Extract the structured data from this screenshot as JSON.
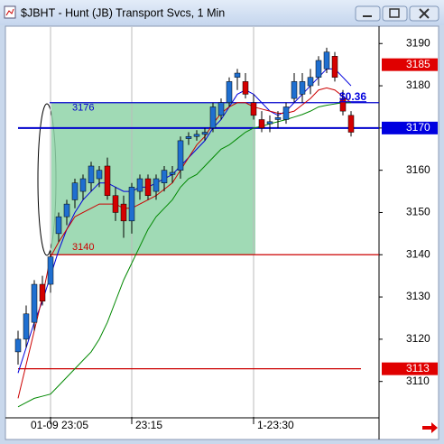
{
  "chart_data": {
    "type": "candlestick",
    "title": "$JBHT - Hunt (JB) Transport Svcs, 1 Min",
    "categories": [
      null,
      null,
      null,
      null,
      "01-09 23:05",
      null,
      null,
      null,
      null,
      null,
      null,
      null,
      null,
      null,
      "23:15",
      null,
      null,
      null,
      null,
      null,
      null,
      null,
      null,
      null,
      null,
      null,
      null,
      null,
      null,
      "1-23:30",
      null,
      null,
      null,
      null,
      null,
      null,
      null,
      null,
      null,
      null,
      null,
      null
    ],
    "open": [
      3117,
      3120,
      3124,
      3133,
      3133,
      3145,
      3149,
      3153,
      3155,
      3157,
      3158,
      3161,
      3154,
      3152,
      3148,
      3155,
      3158,
      3155,
      3157,
      3159,
      3160,
      3167.5,
      3168,
      3168.5,
      3170,
      3173,
      3176,
      3182,
      3181,
      3176,
      3172,
      3171,
      3172,
      3172,
      3177,
      3178,
      3180,
      3182,
      3184,
      3187,
      3177,
      3173
    ],
    "high": [
      3122,
      3128,
      3134,
      3135,
      3141,
      3150,
      3153,
      3158,
      3159,
      3162,
      3161,
      3163,
      3156,
      3154,
      3157,
      3159,
      3159,
      3159,
      3161,
      3161,
      3168,
      3169,
      3169.5,
      3170,
      3176,
      3177,
      3182,
      3184,
      3183,
      3178,
      3174,
      3173,
      3174,
      3176,
      3183,
      3183,
      3184,
      3187,
      3189,
      3188,
      3179,
      3174
    ],
    "low": [
      3114,
      3118,
      3122,
      3128,
      3131,
      3143,
      3147,
      3151,
      3153,
      3155,
      3156,
      3153,
      3148,
      3144,
      3145,
      3153,
      3153,
      3153,
      3155,
      3157,
      3158,
      3166,
      3167,
      3167,
      3169,
      3172,
      3175,
      3179,
      3177,
      3172,
      3169,
      3169,
      3170,
      3171,
      3176,
      3176,
      3178,
      3180,
      3183,
      3181,
      3173,
      3168
    ],
    "close": [
      3120,
      3126,
      3133,
      3129,
      3139.5,
      3149,
      3152,
      3157,
      3158,
      3161,
      3160,
      3154,
      3150,
      3148,
      3156,
      3158,
      3154,
      3158,
      3160,
      3159.5,
      3167,
      3168,
      3168.5,
      3169,
      3175,
      3176,
      3181,
      3183,
      3178,
      3173,
      3170,
      3171.5,
      3172.5,
      3175,
      3181,
      3181,
      3182,
      3186,
      3188,
      3182,
      3174,
      3169
    ],
    "up_color": "#1f6fd0",
    "down_color": "#d40000",
    "overlays": [
      {
        "color": "#0000dd",
        "values": [
          3112,
          3118,
          3124,
          3129,
          3135,
          3141,
          3146,
          3150,
          3153,
          3155,
          3157,
          3157,
          3156,
          3155,
          3155,
          3156,
          3156,
          3157,
          3158,
          3159,
          3161,
          3163,
          3165,
          3167,
          3170,
          3172,
          3175,
          3178,
          3179,
          3178,
          3176,
          3174,
          3173,
          3174,
          3176,
          3178,
          3180,
          3182,
          3184,
          3184,
          3182,
          3180
        ]
      },
      {
        "color": "#cc0000",
        "values": [
          3106,
          3114,
          3122,
          3130,
          3139.5,
          3143,
          3146,
          3149,
          3150,
          3151,
          3152,
          3152,
          3152,
          3151,
          3151,
          3152,
          3153,
          3154,
          3155.5,
          3157,
          3160,
          3163,
          3166,
          3168,
          3171,
          3173.5,
          3175,
          3176,
          3176,
          3175,
          3174.5,
          3174,
          3173.5,
          3173.5,
          3174,
          3175.5,
          3177,
          3179,
          3179.5,
          3179,
          3177.5,
          3176
        ]
      },
      {
        "color": "#008800",
        "values": [
          3104,
          3105,
          3106,
          3106.5,
          3107,
          3109,
          3111,
          3113,
          3115,
          3117,
          3120,
          3124,
          3129,
          3134,
          3138,
          3142,
          3146,
          3149,
          3151,
          3153,
          3156,
          3158,
          3159,
          3161,
          3163,
          3165,
          3166,
          3167.5,
          3169,
          3170,
          3170.4,
          3171,
          3171.5,
          3172,
          3172.6,
          3173.2,
          3174,
          3175,
          3175.4,
          3175.7,
          3176,
          3176
        ]
      }
    ],
    "hlines": [
      {
        "value": 3176,
        "color": "#0000cc",
        "show_label": true
      },
      {
        "value": 3140,
        "color": "#cc0000",
        "show_label": true
      },
      {
        "value": 3170,
        "color": "#0000cc",
        "show_label": false
      },
      {
        "value": 3113,
        "color": "#cc0000",
        "show_label": false
      }
    ],
    "zone_color": "#8fd4a8",
    "annotation": "$0.36",
    "price_tags": [
      {
        "value": 3185,
        "color": "#e00000"
      },
      {
        "value": 3170,
        "color": "#0000e0"
      },
      {
        "value": 3113,
        "color": "#e00000"
      }
    ],
    "ylim": [
      3101.6,
      3193.9
    ],
    "yticks": [
      3110,
      3120,
      3130,
      3140,
      3150,
      3160,
      3170,
      3180,
      3190
    ]
  }
}
